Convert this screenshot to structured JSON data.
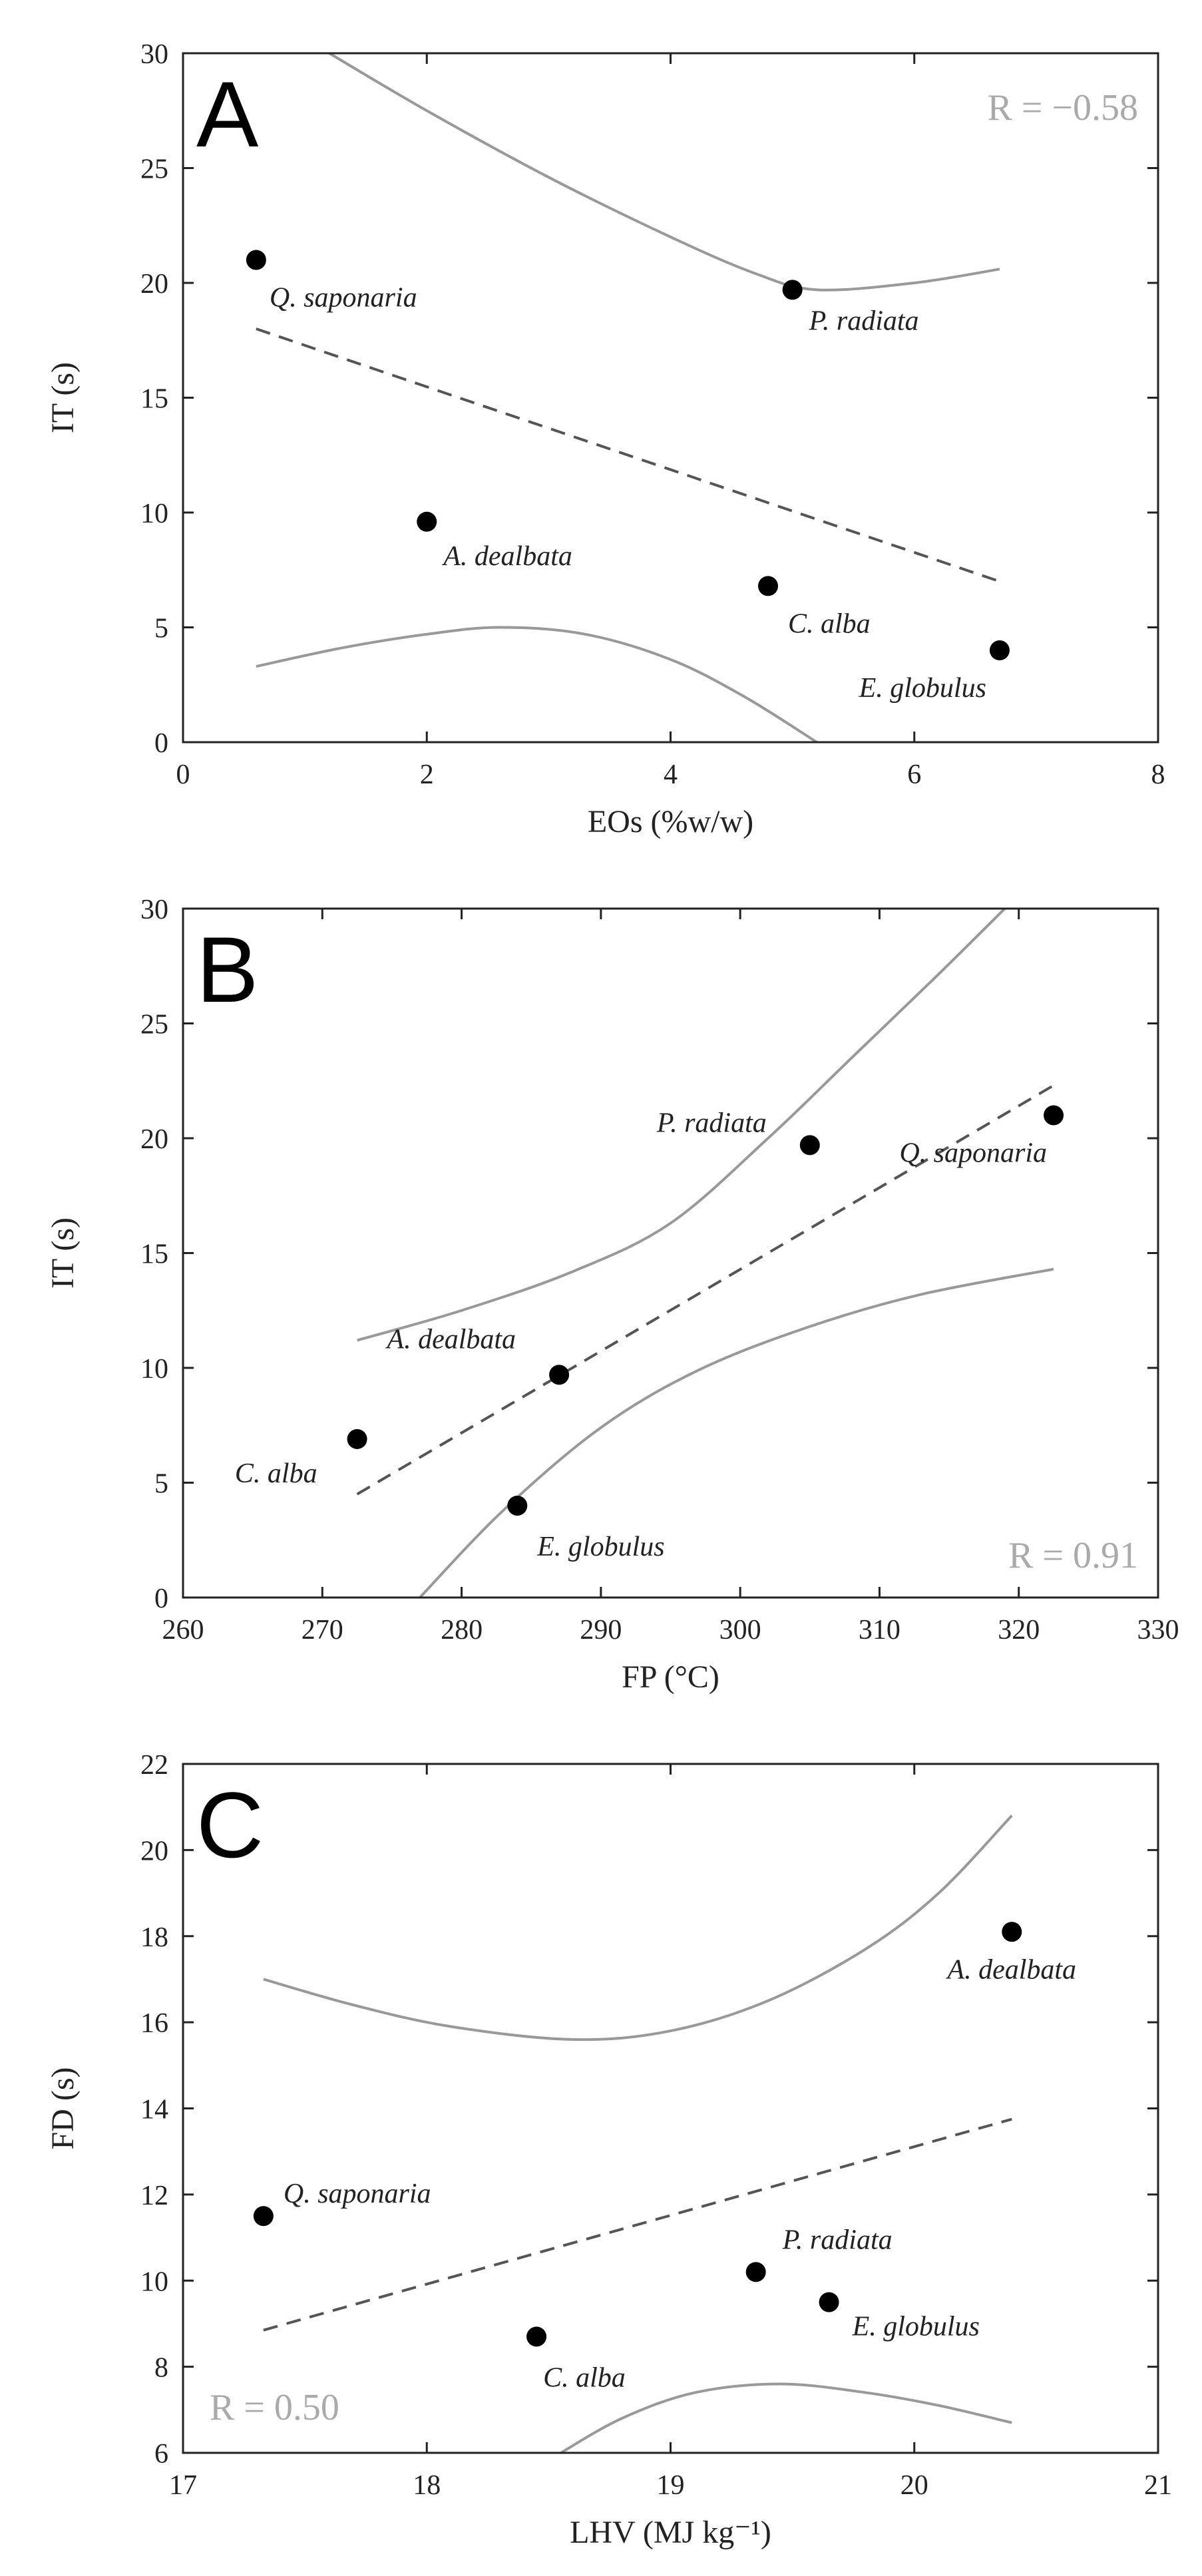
{
  "chart_data": [
    {
      "type": "scatter",
      "panel": "A",
      "xlabel": "EOs (%w/w)",
      "ylabel": "IT (s)",
      "xlim": [
        0,
        8
      ],
      "ylim": [
        0,
        30
      ],
      "xticks": [
        0,
        2,
        4,
        6,
        8
      ],
      "yticks": [
        0,
        5,
        10,
        15,
        20,
        25,
        30
      ],
      "annotation": "R = −0.58",
      "points": [
        {
          "label": "Q. saponaria",
          "x": 0.6,
          "y": 21.0
        },
        {
          "label": "P. radiata",
          "x": 5.0,
          "y": 19.7
        },
        {
          "label": "A. dealbata",
          "x": 2.0,
          "y": 9.6
        },
        {
          "label": "C. alba",
          "x": 4.8,
          "y": 6.8
        },
        {
          "label": "E. globulus",
          "x": 6.7,
          "y": 4.0
        }
      ],
      "fit_line": [
        [
          0.6,
          18.0
        ],
        [
          6.7,
          7.0
        ]
      ],
      "ci_upper": [
        [
          1.2,
          30.0
        ],
        [
          2.0,
          27.5
        ],
        [
          3.0,
          24.6
        ],
        [
          4.0,
          22.0
        ],
        [
          4.7,
          20.4
        ],
        [
          5.2,
          19.7
        ],
        [
          6.0,
          20.0
        ],
        [
          6.7,
          20.6
        ]
      ],
      "ci_lower": [
        [
          0.6,
          3.3
        ],
        [
          1.3,
          4.1
        ],
        [
          2.0,
          4.7
        ],
        [
          2.6,
          5.0
        ],
        [
          3.3,
          4.7
        ],
        [
          4.0,
          3.6
        ],
        [
          4.6,
          2.0
        ],
        [
          5.2,
          0.0
        ]
      ]
    },
    {
      "type": "scatter",
      "panel": "B",
      "xlabel": "FP (°C)",
      "ylabel": "IT (s)",
      "xlim": [
        260,
        330
      ],
      "ylim": [
        0,
        30
      ],
      "xticks": [
        260,
        270,
        280,
        290,
        300,
        310,
        320,
        330
      ],
      "yticks": [
        0,
        5,
        10,
        15,
        20,
        25,
        30
      ],
      "annotation": "R = 0.91",
      "points": [
        {
          "label": "P. radiata",
          "x": 305,
          "y": 19.7
        },
        {
          "label": "Q. saponaria",
          "x": 322.5,
          "y": 21.0
        },
        {
          "label": "A. dealbata",
          "x": 287,
          "y": 9.7
        },
        {
          "label": "C. alba",
          "x": 272.5,
          "y": 6.9
        },
        {
          "label": "E. globulus",
          "x": 284,
          "y": 4.0
        }
      ],
      "fit_line": [
        [
          272.5,
          4.5
        ],
        [
          322.5,
          22.3
        ]
      ],
      "ci_upper": [
        [
          272.5,
          11.2
        ],
        [
          280,
          12.5
        ],
        [
          288,
          14.2
        ],
        [
          295,
          16.3
        ],
        [
          302,
          20.0
        ],
        [
          308,
          23.5
        ],
        [
          314,
          27.0
        ],
        [
          319,
          30.0
        ]
      ],
      "ci_lower": [
        [
          277,
          0.0
        ],
        [
          283,
          3.8
        ],
        [
          290,
          7.4
        ],
        [
          297,
          9.9
        ],
        [
          305,
          11.8
        ],
        [
          313,
          13.2
        ],
        [
          322.5,
          14.3
        ]
      ]
    },
    {
      "type": "scatter",
      "panel": "C",
      "xlabel": "LHV (MJ kg⁻¹)",
      "ylabel": "FD (s)",
      "xlim": [
        17,
        21
      ],
      "ylim": [
        6,
        22
      ],
      "xticks": [
        17,
        18,
        19,
        20,
        21
      ],
      "yticks": [
        6,
        8,
        10,
        12,
        14,
        16,
        18,
        20,
        22
      ],
      "annotation": "R = 0.50",
      "points": [
        {
          "label": "A. dealbata",
          "x": 20.4,
          "y": 18.1
        },
        {
          "label": "Q. saponaria",
          "x": 17.33,
          "y": 11.5
        },
        {
          "label": "P. radiata",
          "x": 19.35,
          "y": 10.2
        },
        {
          "label": "E. globulus",
          "x": 19.65,
          "y": 9.5
        },
        {
          "label": "C. alba",
          "x": 18.45,
          "y": 8.7
        }
      ],
      "fit_line": [
        [
          17.33,
          8.85
        ],
        [
          20.4,
          13.75
        ]
      ],
      "ci_upper": [
        [
          17.33,
          17.0
        ],
        [
          17.7,
          16.4
        ],
        [
          18.1,
          15.9
        ],
        [
          18.6,
          15.6
        ],
        [
          19.0,
          15.8
        ],
        [
          19.4,
          16.5
        ],
        [
          19.8,
          17.7
        ],
        [
          20.1,
          19.0
        ],
        [
          20.4,
          20.8
        ]
      ],
      "ci_lower": [
        [
          18.55,
          6.0
        ],
        [
          18.8,
          6.8
        ],
        [
          19.1,
          7.4
        ],
        [
          19.45,
          7.6
        ],
        [
          19.8,
          7.4
        ],
        [
          20.1,
          7.1
        ],
        [
          20.4,
          6.7
        ]
      ]
    }
  ]
}
